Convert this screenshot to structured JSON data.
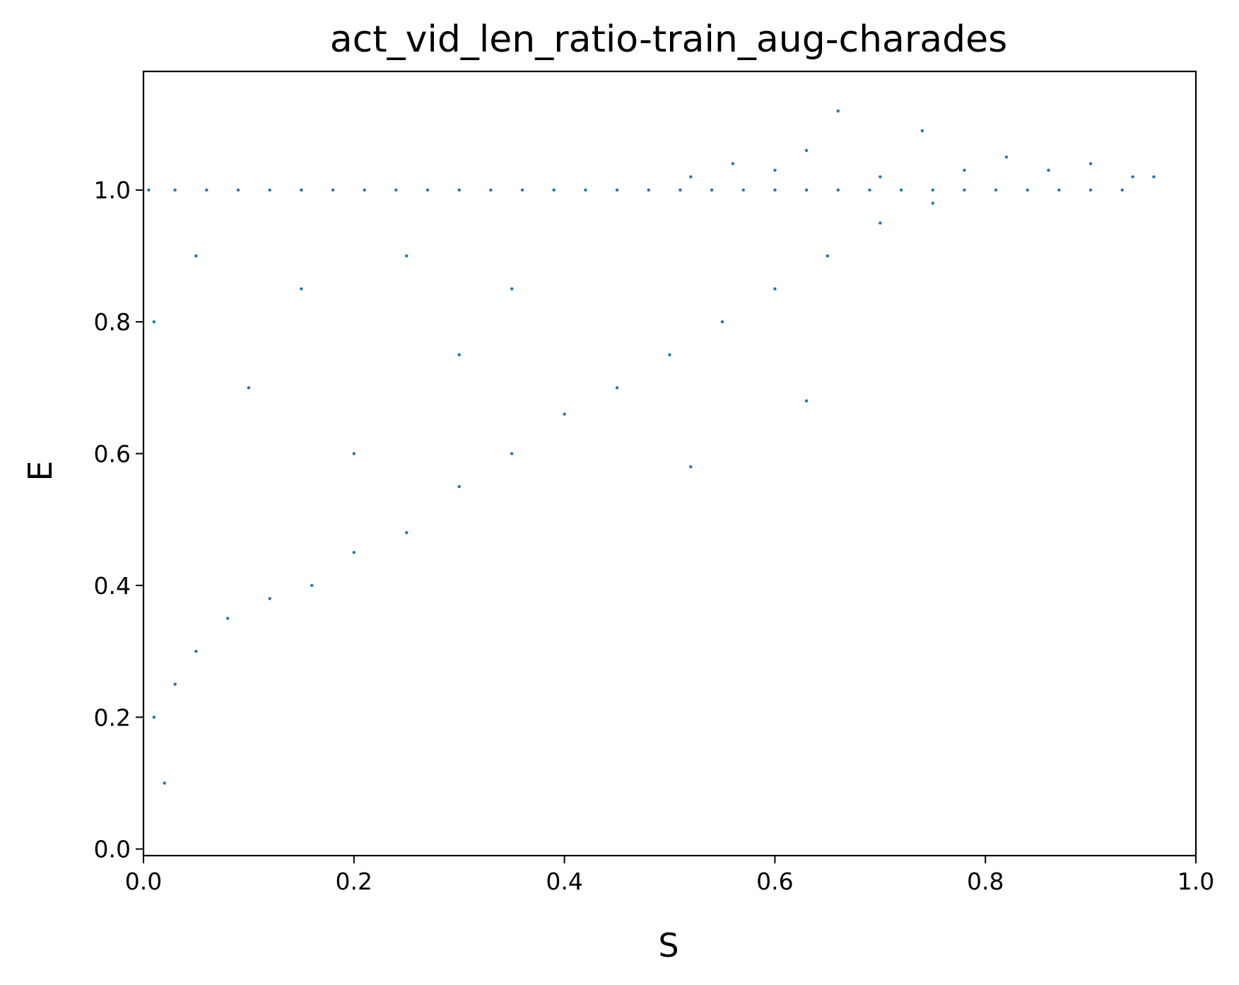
{
  "chart_data": {
    "type": "scatter",
    "title": "act_vid_len_ratio-train_aug-charades",
    "xlabel": "S",
    "ylabel": "E",
    "xlim": [
      0.0,
      1.0
    ],
    "ylim": [
      -0.01,
      1.18
    ],
    "x_ticks": [
      "0.0",
      "0.2",
      "0.4",
      "0.6",
      "0.8",
      "1.0"
    ],
    "y_ticks": [
      "0.0",
      "0.2",
      "0.4",
      "0.6",
      "0.8",
      "1.0"
    ],
    "grid": false,
    "legend": "none",
    "point_color": "#1f77b4",
    "point_edge_color": "#ffffff",
    "series": [
      {
        "points": [
          [
            0.005,
            1.0
          ],
          [
            0.03,
            1.0
          ],
          [
            0.06,
            1.0
          ],
          [
            0.09,
            1.0
          ],
          [
            0.12,
            1.0
          ],
          [
            0.15,
            1.0
          ],
          [
            0.18,
            1.0
          ],
          [
            0.21,
            1.0
          ],
          [
            0.24,
            1.0
          ],
          [
            0.27,
            1.0
          ],
          [
            0.3,
            1.0
          ],
          [
            0.33,
            1.0
          ],
          [
            0.36,
            1.0
          ],
          [
            0.39,
            1.0
          ],
          [
            0.42,
            1.0
          ],
          [
            0.45,
            1.0
          ],
          [
            0.48,
            1.0
          ],
          [
            0.51,
            1.0
          ],
          [
            0.54,
            1.0
          ],
          [
            0.57,
            1.0
          ],
          [
            0.6,
            1.0
          ],
          [
            0.63,
            1.0
          ],
          [
            0.66,
            1.0
          ],
          [
            0.69,
            1.0
          ],
          [
            0.72,
            1.0
          ],
          [
            0.75,
            1.0
          ],
          [
            0.78,
            1.0
          ],
          [
            0.81,
            1.0
          ],
          [
            0.84,
            1.0
          ],
          [
            0.87,
            1.0
          ],
          [
            0.9,
            1.0
          ],
          [
            0.93,
            1.0
          ],
          [
            0.52,
            1.02
          ],
          [
            0.56,
            1.04
          ],
          [
            0.6,
            1.03
          ],
          [
            0.63,
            1.06
          ],
          [
            0.66,
            1.12
          ],
          [
            0.7,
            1.02
          ],
          [
            0.74,
            1.09
          ],
          [
            0.78,
            1.03
          ],
          [
            0.82,
            1.05
          ],
          [
            0.86,
            1.03
          ],
          [
            0.9,
            1.04
          ],
          [
            0.94,
            1.02
          ],
          [
            0.96,
            1.02
          ],
          [
            0.01,
            0.2
          ],
          [
            0.02,
            0.1
          ],
          [
            0.03,
            0.25
          ],
          [
            0.05,
            0.3
          ],
          [
            0.08,
            0.35
          ],
          [
            0.12,
            0.38
          ],
          [
            0.16,
            0.4
          ],
          [
            0.2,
            0.45
          ],
          [
            0.25,
            0.48
          ],
          [
            0.3,
            0.55
          ],
          [
            0.35,
            0.6
          ],
          [
            0.4,
            0.66
          ],
          [
            0.45,
            0.7
          ],
          [
            0.5,
            0.75
          ],
          [
            0.55,
            0.8
          ],
          [
            0.6,
            0.85
          ],
          [
            0.65,
            0.9
          ],
          [
            0.7,
            0.95
          ],
          [
            0.75,
            0.98
          ],
          [
            0.01,
            0.8
          ],
          [
            0.05,
            0.9
          ],
          [
            0.1,
            0.7
          ],
          [
            0.15,
            0.85
          ],
          [
            0.2,
            0.6
          ],
          [
            0.25,
            0.9
          ],
          [
            0.3,
            0.75
          ],
          [
            0.35,
            0.85
          ],
          [
            0.52,
            0.58
          ],
          [
            0.63,
            0.68
          ]
        ]
      }
    ]
  }
}
